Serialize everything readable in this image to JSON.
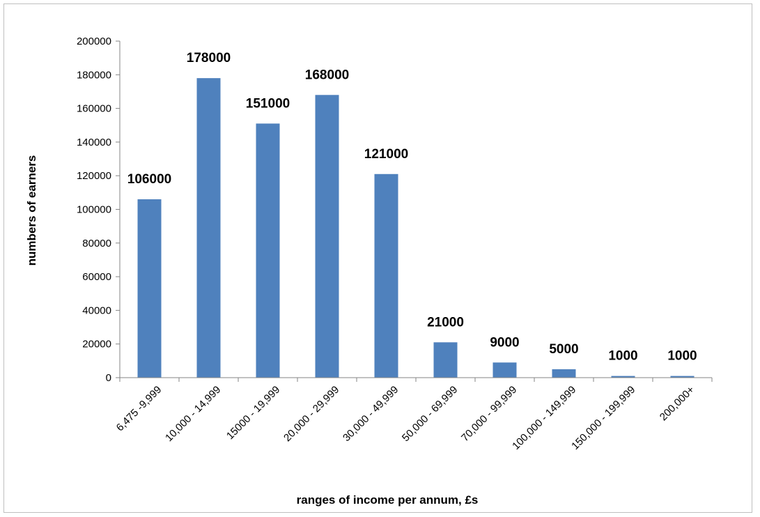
{
  "chart_data": {
    "type": "bar",
    "categories": [
      "6,475 -9,999",
      "10,000 - 14,999",
      "15000 - 19,999",
      "20,000 - 29,999",
      "30,000 - 49,999",
      "50,000 - 69,999",
      "70,000 - 99,999",
      "100,000 - 149,999",
      "150,000 - 199,999",
      "200,000+"
    ],
    "series": [
      {
        "values": [
          106000,
          178000,
          151000,
          168000,
          121000,
          21000,
          9000,
          5000,
          1000,
          1000
        ]
      }
    ],
    "data_labels": [
      "106000",
      "178000",
      "151000",
      "168000",
      "121000",
      "21000",
      "9000",
      "5000",
      "1000",
      "1000"
    ],
    "xlabel": "ranges of income per annum, £s",
    "ylabel": "numbers of earners",
    "ylim": [
      0,
      200000
    ],
    "yticks": [
      0,
      20000,
      40000,
      60000,
      80000,
      100000,
      120000,
      140000,
      160000,
      180000,
      200000
    ],
    "ytick_labels": [
      "0",
      "20000",
      "40000",
      "60000",
      "80000",
      "100000",
      "120000",
      "140000",
      "160000",
      "180000",
      "200000"
    ],
    "grid": false,
    "legend": "none",
    "bar_color": "#4f81bd",
    "axis_color": "#868686"
  }
}
